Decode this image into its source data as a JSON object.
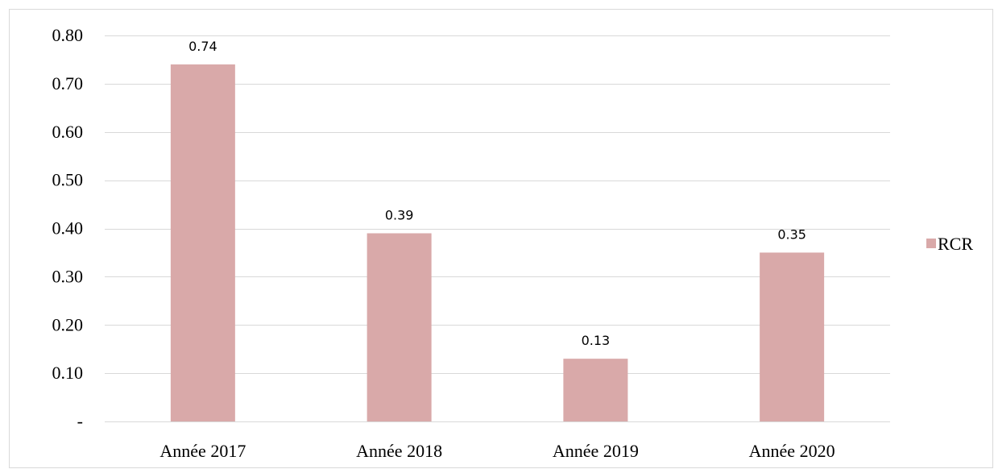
{
  "chart_data": {
    "type": "bar",
    "title": "",
    "xlabel": "",
    "ylabel": "",
    "categories": [
      "Année 2017",
      "Année 2018",
      "Année 2019",
      "Année 2020"
    ],
    "series": [
      {
        "name": "RCR",
        "values": [
          0.74,
          0.39,
          0.13,
          0.35
        ],
        "data_labels": [
          "0.74",
          "0.39",
          "0.13",
          "0.35"
        ],
        "color": "#d9a9a9"
      }
    ],
    "ylim": [
      0,
      0.8
    ],
    "y_ticks": [
      0,
      0.1,
      0.2,
      0.3,
      0.4,
      0.5,
      0.6,
      0.7,
      0.8
    ],
    "y_tick_labels": [
      "-",
      "0.10",
      "0.20",
      "0.30",
      "0.40",
      "0.50",
      "0.60",
      "0.70",
      "0.80"
    ],
    "grid": true,
    "grid_color": "#d9d9d9",
    "legend": {
      "position": "right",
      "entries": [
        "RCR"
      ]
    }
  }
}
